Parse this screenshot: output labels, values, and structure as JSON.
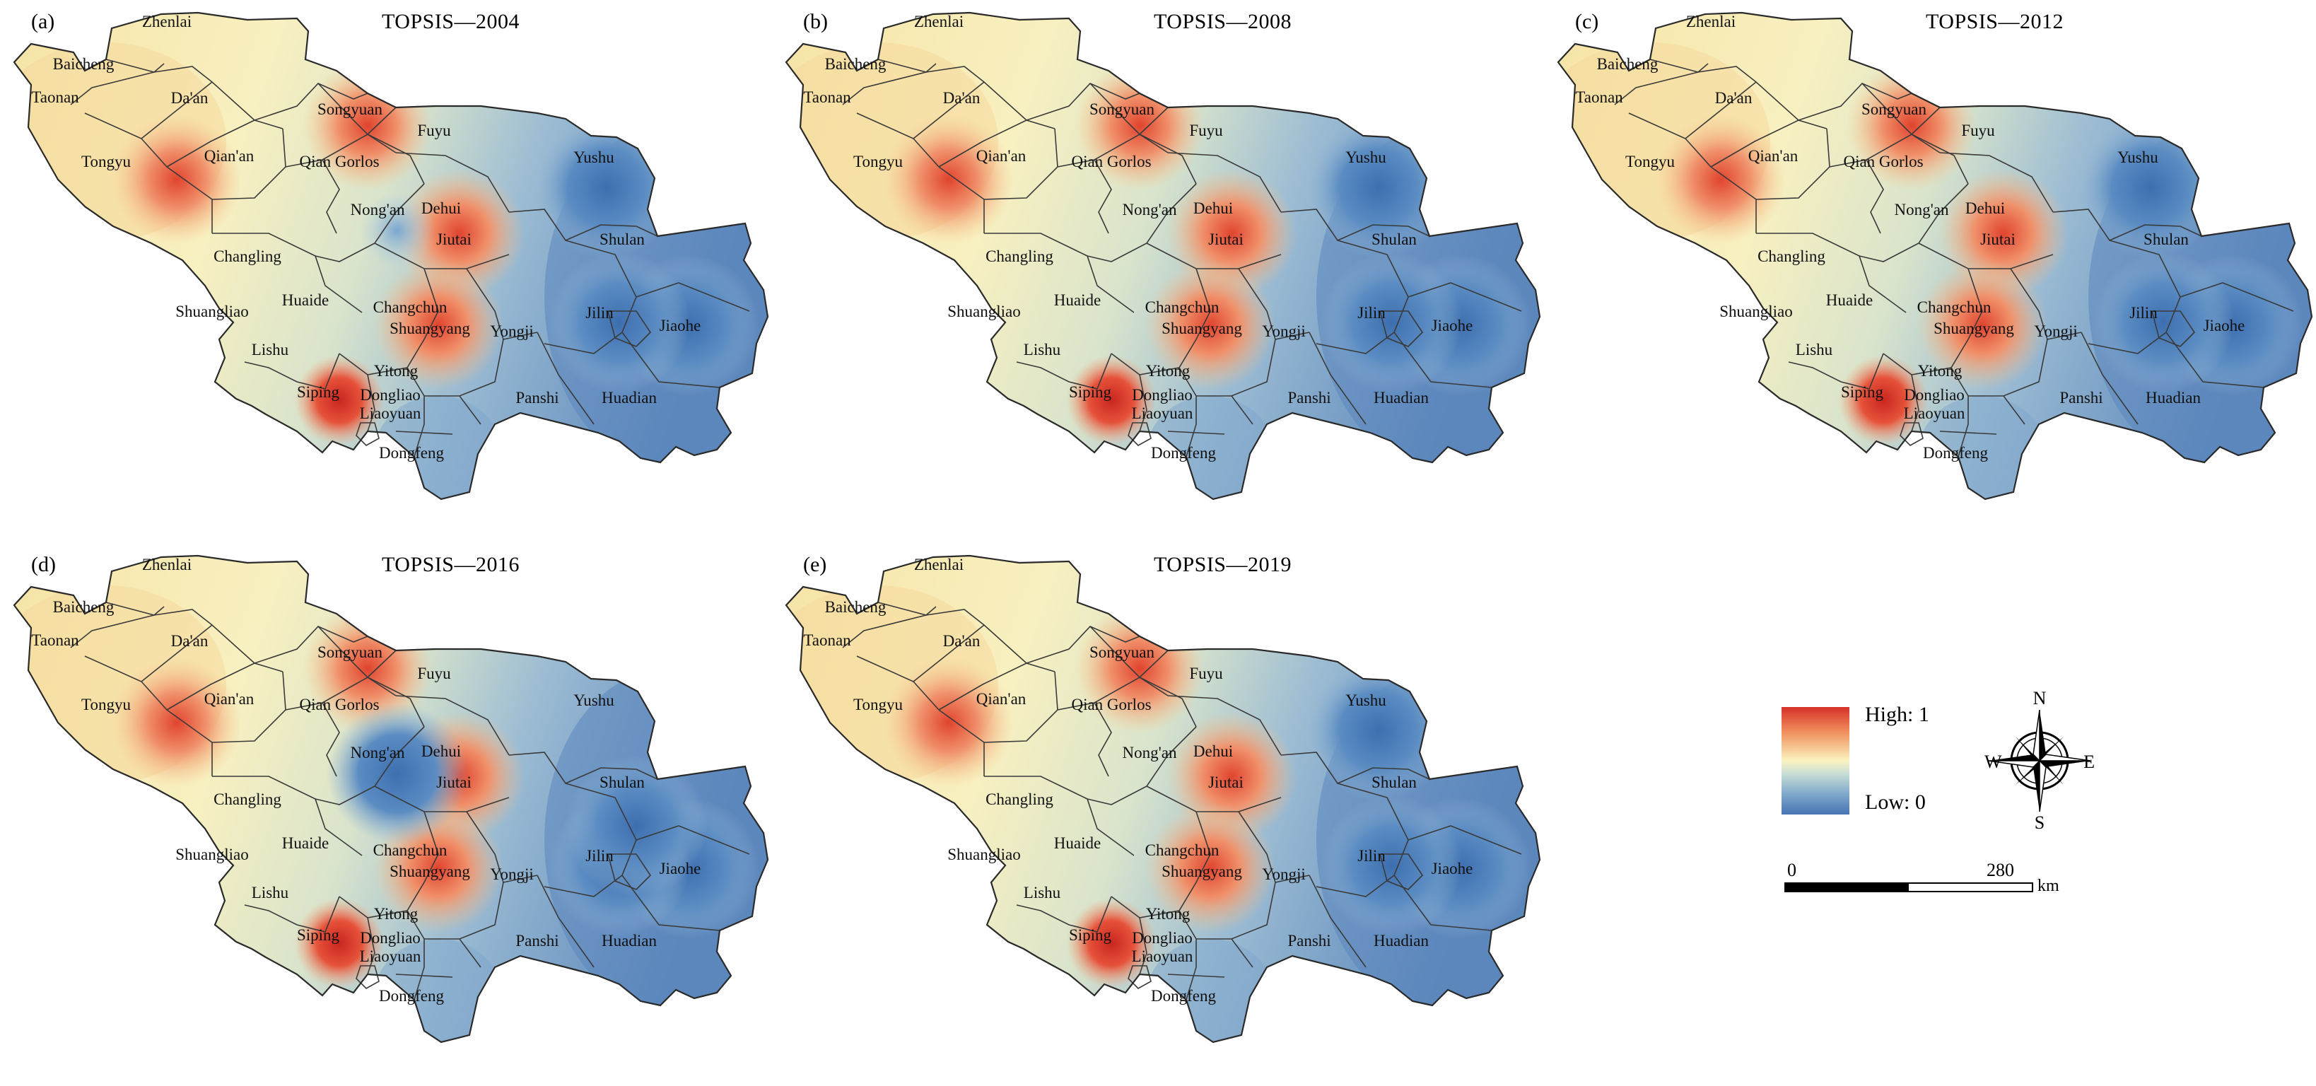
{
  "panels": [
    {
      "letter": "(a)",
      "title": "TOPSIS—2004",
      "year": 2004
    },
    {
      "letter": "(b)",
      "title": "TOPSIS—2008",
      "year": 2008
    },
    {
      "letter": "(c)",
      "title": "TOPSIS—2012",
      "year": 2012
    },
    {
      "letter": "(d)",
      "title": "TOPSIS—2016",
      "year": 2016
    },
    {
      "letter": "(e)",
      "title": "TOPSIS—2019",
      "year": 2019
    }
  ],
  "places": [
    "Zhenlai",
    "Baicheng",
    "Taonan",
    "Da'an",
    "Songyuan",
    "Fuyu",
    "Yushu",
    "Tongyu",
    "Qian'an",
    "Qian Gorlos",
    "Nong'an",
    "Dehui",
    "Jiutai",
    "Shulan",
    "Changling",
    "Huaide",
    "Changchun",
    "Jilin",
    "Jiaohe",
    "Shuangliao",
    "Lishu",
    "Shuangyang",
    "Yongji",
    "Yitong",
    "Siping",
    "Dongliao",
    "Liaoyuan",
    "Panshi",
    "Huadian",
    "Dongfeng"
  ],
  "hotspots": {
    "2004": {
      "Tongyu": "high",
      "Songyuan": "high",
      "Dehui": "high",
      "Changchun": "high",
      "Siping": "very-high",
      "Yushu": "low",
      "Jiaohe": "low",
      "Jilin": "low",
      "Nong'an": "low-mid"
    },
    "2008": {
      "Tongyu": "high",
      "Songyuan": "high",
      "Dehui": "high",
      "Changchun": "high",
      "Siping": "very-high",
      "Yushu": "low",
      "Jiaohe": "low",
      "Jilin": "low"
    },
    "2012": {
      "Tongyu": "high",
      "Songyuan": "high",
      "Dehui": "high",
      "Changchun": "high",
      "Siping": "very-high",
      "Yushu": "low",
      "Jiaohe": "low",
      "Jilin": "low"
    },
    "2016": {
      "Tongyu": "high",
      "Songyuan": "high",
      "Dehui": "high",
      "Changchun": "high",
      "Siping": "very-high",
      "Nong'an": "low",
      "Jiaohe": "low",
      "Jilin": "low",
      "Shulan": "low"
    },
    "2019": {
      "Tongyu": "high",
      "Songyuan": "high",
      "Dehui": "high",
      "Changchun": "high",
      "Siping": "very-high",
      "Yushu": "low",
      "Jiaohe": "low",
      "Jilin": "low"
    }
  },
  "legend": {
    "high": "High: 1",
    "low": "Low: 0",
    "high_color": "#d73027",
    "low_color": "#4575b4"
  },
  "compass": {
    "n": "N",
    "s": "S",
    "e": "E",
    "w": "W"
  },
  "scale": {
    "zero": "0",
    "max": "280",
    "unit": "km"
  }
}
